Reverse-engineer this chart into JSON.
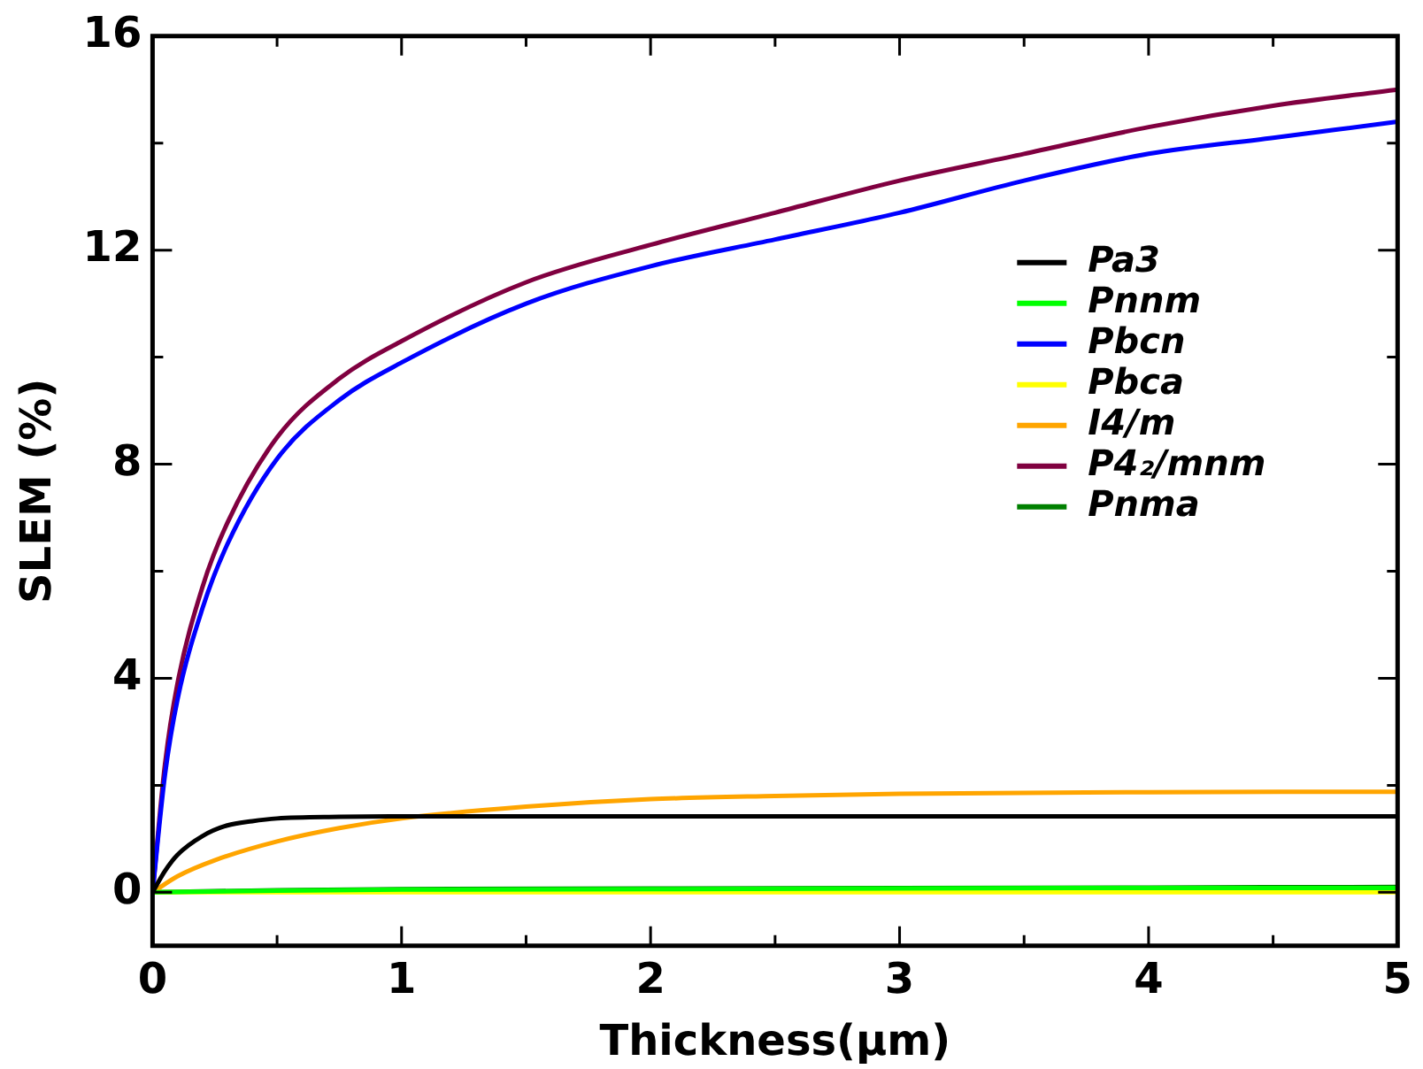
{
  "chart_data": {
    "type": "line",
    "xlabel": "Thickness(μm)",
    "ylabel": "SLEM (%)",
    "xlim": [
      0,
      5
    ],
    "xticks": [
      0,
      {
        "value": 0.5,
        "label": null
      },
      1,
      {
        "value": 1.5,
        "label": null
      },
      2,
      {
        "value": 2.5,
        "label": null
      },
      3,
      {
        "value": 3.5,
        "label": null
      },
      4,
      {
        "value": 4.5,
        "label": null
      },
      5
    ],
    "ylim": [
      -1,
      16
    ],
    "yticks": [
      0,
      {
        "value": 2,
        "label": null
      },
      4,
      {
        "value": 6,
        "label": null
      },
      8,
      {
        "value": 10,
        "label": null
      },
      12,
      {
        "value": 14,
        "label": null
      },
      16
    ],
    "grid": false,
    "legend": "right",
    "marker": "none",
    "line_style": "solid",
    "series": [
      {
        "name": "Pa3",
        "color": "#000000",
        "x": [
          0,
          0.05,
          0.1,
          0.2,
          0.3,
          0.4,
          0.5,
          0.75,
          1,
          2,
          3,
          4,
          5
        ],
        "values": [
          0,
          0.4,
          0.7,
          1.05,
          1.25,
          1.33,
          1.38,
          1.41,
          1.42,
          1.42,
          1.42,
          1.42,
          1.42
        ]
      },
      {
        "name": "Pnnm",
        "color": "#00ff00",
        "x": [
          0,
          0.5,
          1,
          2,
          3,
          4,
          5
        ],
        "values": [
          0,
          0.03,
          0.05,
          0.06,
          0.07,
          0.08,
          0.08
        ]
      },
      {
        "name": "Pbcn",
        "color": "#0000ff",
        "x": [
          0,
          0.05,
          0.1,
          0.2,
          0.3,
          0.5,
          0.75,
          1,
          1.5,
          2,
          2.5,
          3,
          3.5,
          4,
          4.5,
          5
        ],
        "values": [
          0,
          2.2,
          3.6,
          5.3,
          6.5,
          8.1,
          9.2,
          9.9,
          11.0,
          11.7,
          12.2,
          12.7,
          13.3,
          13.8,
          14.1,
          14.4
        ]
      },
      {
        "name": "Pbca",
        "color": "#ffff00",
        "x": [
          0,
          1,
          2,
          3,
          4,
          5
        ],
        "values": [
          0,
          0,
          0,
          0,
          0,
          0
        ]
      },
      {
        "name": "I4/m",
        "color": "#ffa500",
        "x": [
          0,
          0.1,
          0.25,
          0.5,
          0.75,
          1,
          1.5,
          2,
          2.5,
          3,
          4,
          5
        ],
        "values": [
          0,
          0.3,
          0.6,
          0.95,
          1.2,
          1.38,
          1.6,
          1.74,
          1.8,
          1.84,
          1.87,
          1.88
        ]
      },
      {
        "name": "P4₂/mnm",
        "color": "#800040",
        "x": [
          0,
          0.05,
          0.1,
          0.2,
          0.3,
          0.5,
          0.75,
          1,
          1.5,
          2,
          2.5,
          3,
          3.5,
          4,
          4.5,
          5
        ],
        "values": [
          0,
          2.4,
          3.9,
          5.7,
          6.9,
          8.5,
          9.6,
          10.3,
          11.4,
          12.1,
          12.7,
          13.3,
          13.8,
          14.3,
          14.7,
          15.0
        ]
      },
      {
        "name": "Pnma",
        "color": "#008000",
        "x": [
          0,
          0.5,
          1,
          2,
          3,
          4,
          5
        ],
        "values": [
          0,
          0.04,
          0.06,
          0.07,
          0.08,
          0.09,
          0.1
        ]
      }
    ]
  }
}
